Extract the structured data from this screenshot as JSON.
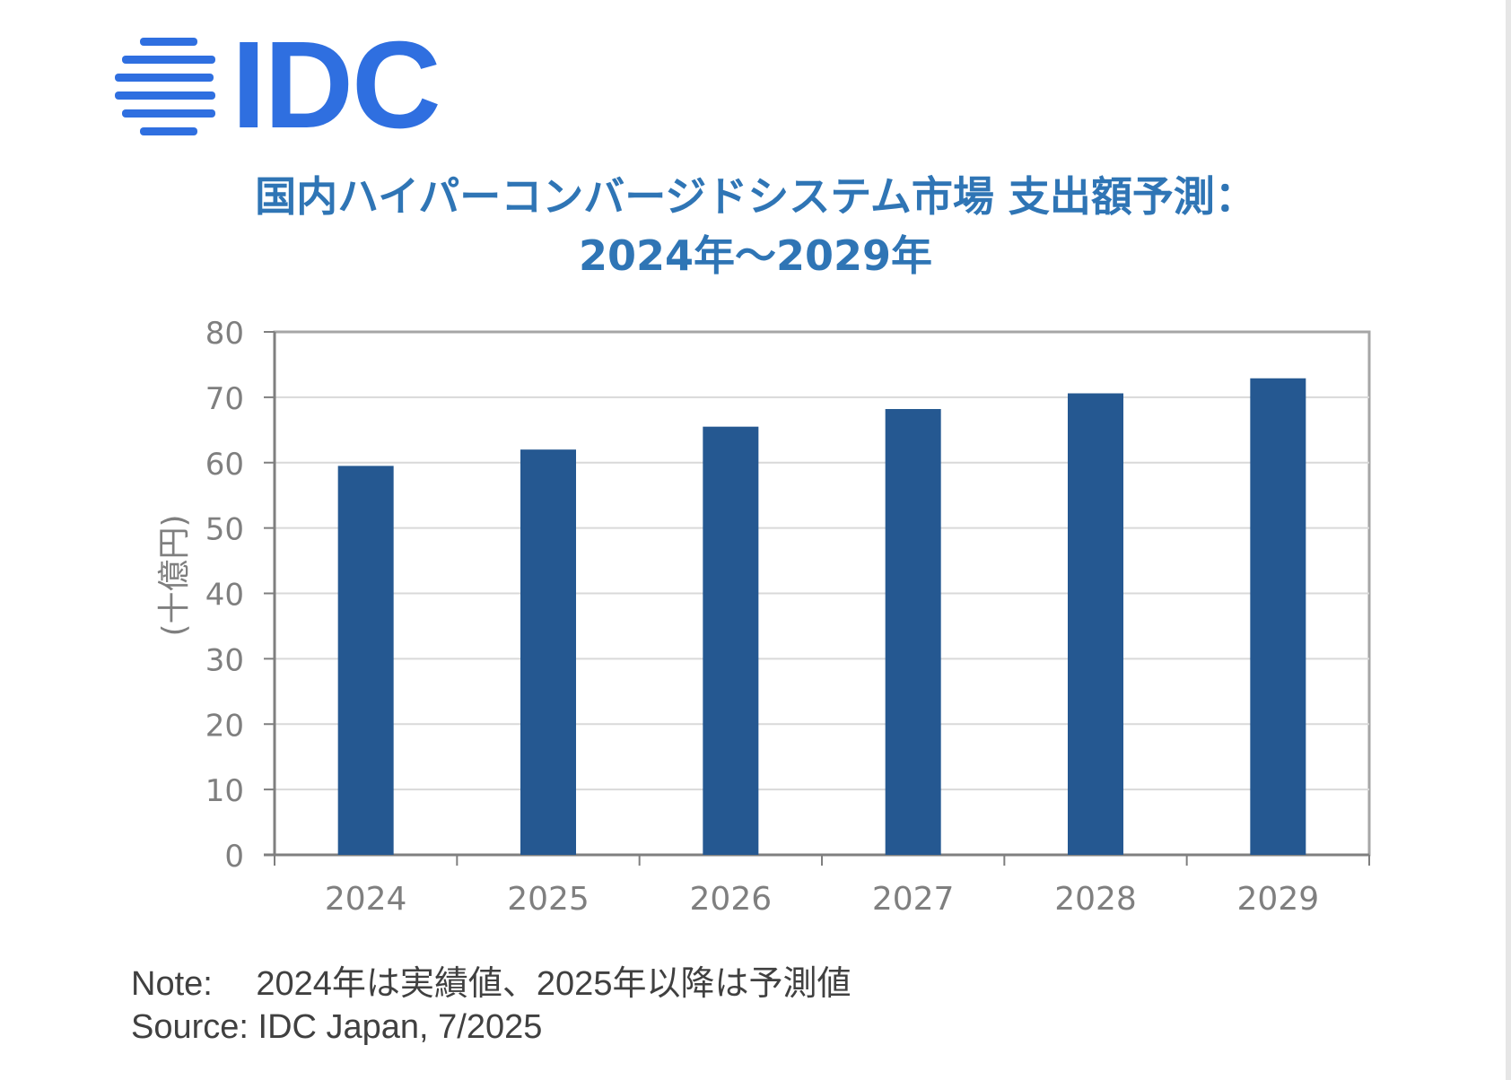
{
  "logo": {
    "text": "IDC",
    "color": "#2f6fe0"
  },
  "title": {
    "line1": "国内ハイパーコンバージドシステム市場 支出額予測：",
    "line2": "2024年～2029年"
  },
  "chart_data": {
    "type": "bar",
    "categories": [
      "2024",
      "2025",
      "2026",
      "2027",
      "2028",
      "2029"
    ],
    "values": [
      59.5,
      62.0,
      65.5,
      68.2,
      70.6,
      72.9
    ],
    "ylabel": "(十億円)",
    "ylim": [
      0,
      80
    ],
    "yticks": [
      0,
      10,
      20,
      30,
      40,
      50,
      60,
      70,
      80
    ],
    "grid": true,
    "bar_color": "#255891"
  },
  "notes": {
    "note": "Note:　 2024年は実績値、2025年以降は予測値",
    "source": "Source: IDC Japan, 7/2025"
  }
}
